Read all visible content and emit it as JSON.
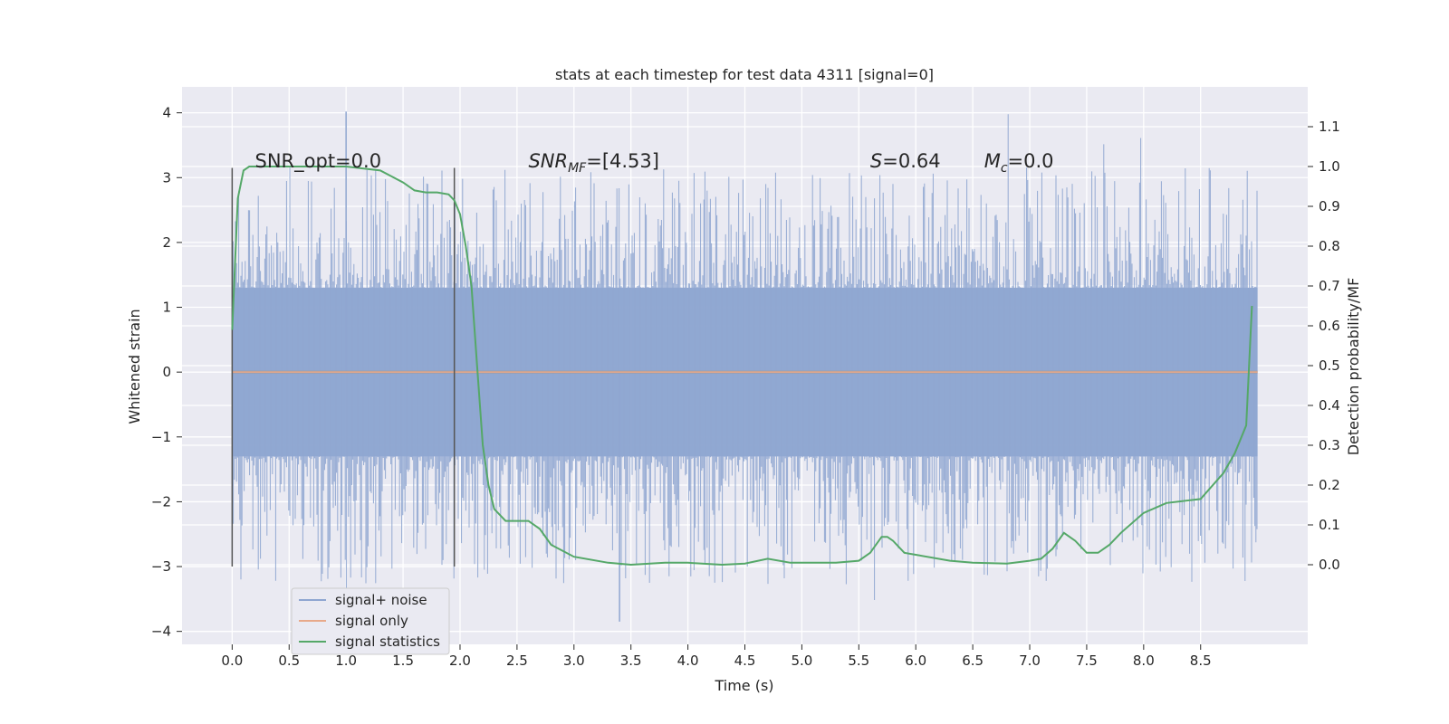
{
  "chart_data": {
    "type": "line",
    "title": "stats at each timestep for test data 4311 [signal=0]",
    "xlabel": "Time (s)",
    "ylabel_left": "Whitened strain",
    "ylabel_right": "Detection probability/MF",
    "xlim": [
      -0.44,
      9.44
    ],
    "ylim_left": [
      -4.2,
      4.4
    ],
    "ylim_right": [
      -0.2,
      1.2
    ],
    "x_ticks": [
      "0.0",
      "0.5",
      "1.0",
      "1.5",
      "2.0",
      "2.5",
      "3.0",
      "3.5",
      "4.0",
      "4.5",
      "5.0",
      "5.5",
      "6.0",
      "6.5",
      "7.0",
      "7.5",
      "8.0",
      "8.5"
    ],
    "y_ticks_left": [
      "4",
      "3",
      "2",
      "1",
      "0",
      "−1",
      "−2",
      "−3",
      "−4"
    ],
    "y_ticks_right": [
      "1.1",
      "1.0",
      "0.9",
      "0.8",
      "0.7",
      "0.6",
      "0.5",
      "0.4",
      "0.3",
      "0.2",
      "0.1",
      "0.0"
    ],
    "grid": true,
    "legend_position": "lower-left",
    "vertical_markers_x": [
      0.0,
      1.95
    ],
    "annotations": [
      {
        "text": "SNR_opt=0.0",
        "x": 0.2
      },
      {
        "text": "SNR",
        "sub": "MF",
        "rest": "=[4.53]",
        "x": 2.6
      },
      {
        "text": "S",
        "rest": "=0.64",
        "x": 5.6
      },
      {
        "text": "M",
        "sub": "c",
        "rest": "=0.0",
        "x": 6.6
      }
    ],
    "series": [
      {
        "name": "signal+ noise",
        "color": "#8fa6d1",
        "x_range": [
          0.0,
          9.0
        ],
        "typical_abs": 1.3,
        "max": 4.02,
        "min": -3.85
      },
      {
        "name": "signal only",
        "color": "#e8a98a",
        "x_range": [
          0.0,
          9.0
        ],
        "values": [
          0.0,
          0.0
        ]
      },
      {
        "name": "signal statistics",
        "color": "#55a868",
        "x": [
          0.0,
          0.05,
          0.1,
          0.15,
          0.25,
          0.5,
          1.0,
          1.3,
          1.5,
          1.6,
          1.7,
          1.8,
          1.9,
          1.95,
          2.0,
          2.05,
          2.1,
          2.15,
          2.2,
          2.25,
          2.3,
          2.4,
          2.5,
          2.6,
          2.7,
          2.8,
          3.0,
          3.3,
          3.5,
          3.8,
          4.0,
          4.3,
          4.5,
          4.7,
          4.9,
          5.0,
          5.3,
          5.5,
          5.6,
          5.7,
          5.75,
          5.8,
          5.9,
          6.0,
          6.3,
          6.5,
          6.8,
          7.0,
          7.1,
          7.2,
          7.3,
          7.4,
          7.5,
          7.6,
          7.7,
          7.8,
          8.0,
          8.2,
          8.5,
          8.7,
          8.8,
          8.9,
          8.95
        ],
        "values": [
          0.59,
          0.92,
          0.99,
          1.0,
          1.0,
          1.0,
          1.0,
          0.99,
          0.96,
          0.94,
          0.935,
          0.935,
          0.93,
          0.915,
          0.88,
          0.8,
          0.7,
          0.5,
          0.3,
          0.2,
          0.14,
          0.11,
          0.11,
          0.11,
          0.09,
          0.05,
          0.02,
          0.005,
          0.0,
          0.005,
          0.005,
          0.0,
          0.003,
          0.015,
          0.005,
          0.005,
          0.005,
          0.01,
          0.03,
          0.07,
          0.07,
          0.06,
          0.03,
          0.025,
          0.01,
          0.005,
          0.003,
          0.01,
          0.015,
          0.04,
          0.08,
          0.06,
          0.03,
          0.03,
          0.05,
          0.08,
          0.13,
          0.155,
          0.165,
          0.23,
          0.28,
          0.35,
          0.65
        ]
      }
    ]
  }
}
